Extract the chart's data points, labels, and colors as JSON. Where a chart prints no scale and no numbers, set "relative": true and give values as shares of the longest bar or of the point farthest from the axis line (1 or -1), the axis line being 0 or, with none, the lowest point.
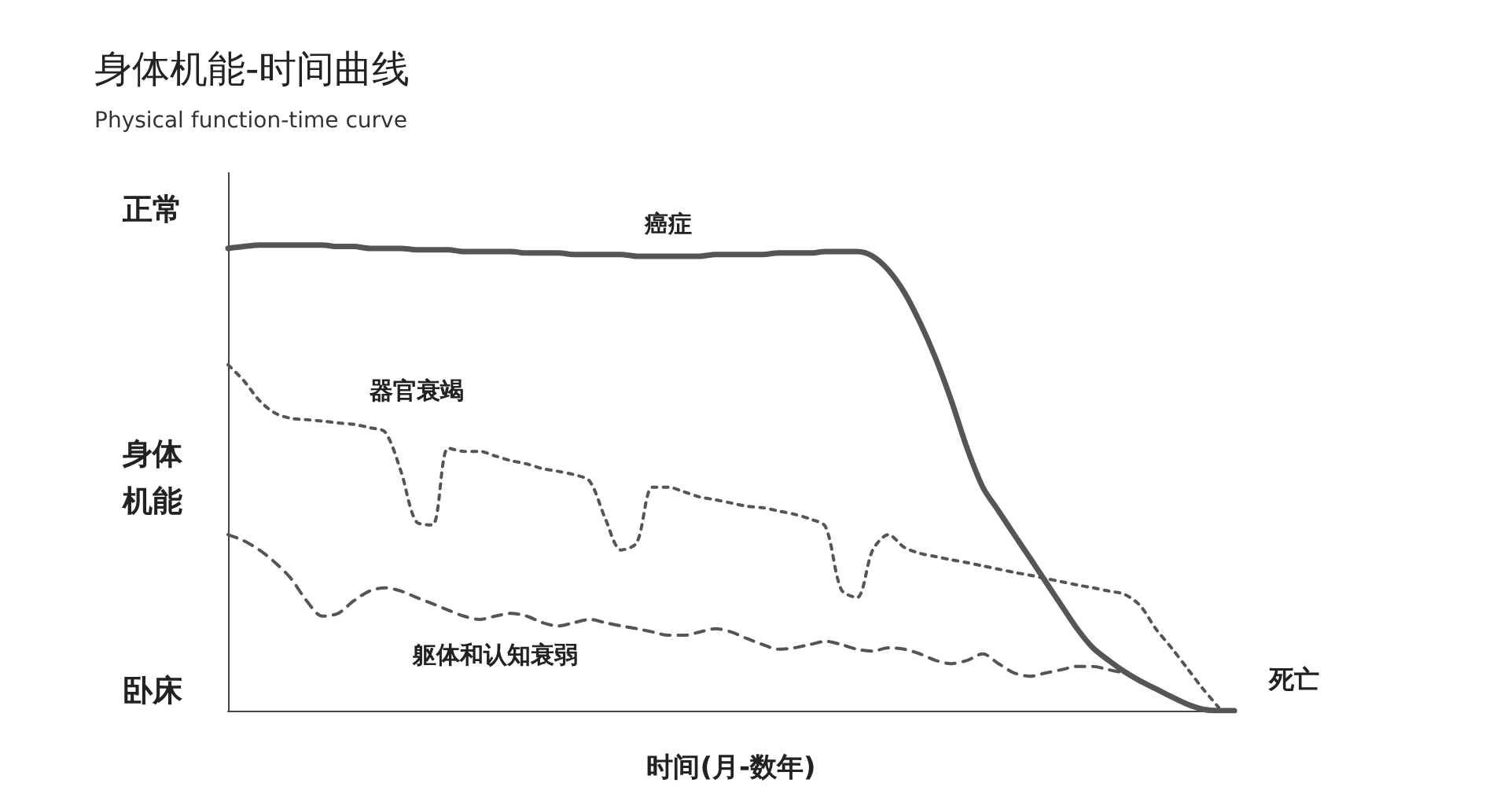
{
  "chart_data": {
    "type": "line",
    "title": "身体机能-时间曲线",
    "subtitle": "Physical function-time curve",
    "xlabel": "时间(月-数年)",
    "ylabel": "身体机能",
    "relative": true,
    "grid": false,
    "legend": false,
    "marker": "none",
    "annotations": [
      "正常",
      "卧床",
      "死亡"
    ],
    "categories": [
      null,
      null,
      null,
      null,
      null,
      null,
      null,
      null,
      null,
      null,
      null,
      null,
      null,
      null,
      null,
      null,
      null,
      null,
      null,
      null,
      null,
      null,
      null,
      null,
      null,
      null,
      null,
      null,
      null,
      null,
      null,
      null,
      null,
      null,
      null,
      null,
      null,
      null,
      null,
      null,
      null,
      null,
      null,
      null,
      null,
      null,
      null,
      null,
      null,
      null,
      null,
      null,
      null,
      null,
      null,
      null,
      null,
      null,
      null,
      null,
      null,
      null,
      null,
      null,
      null
    ],
    "series": [
      {
        "name": "癌症",
        "color": "#555555",
        "line_style": "solid",
        "values": [
          0.993,
          0.997,
          1,
          1,
          1,
          1,
          1,
          0.997,
          0.997,
          0.993,
          0.993,
          0.993,
          0.99,
          0.99,
          0.99,
          0.986,
          0.986,
          0.986,
          0.986,
          0.983,
          0.983,
          0.983,
          0.98,
          0.98,
          0.98,
          0.98,
          0.976,
          0.976,
          0.976,
          0.976,
          0.976,
          0.98,
          0.98,
          0.98,
          0.98,
          0.983,
          0.983,
          0.983,
          0.986,
          0.986,
          0.986,
          0.976,
          0.946,
          0.899,
          0.834,
          0.757,
          0.666,
          0.564,
          0.48,
          0.429,
          0.378,
          0.328,
          0.277,
          0.226,
          0.176,
          0.135,
          0.108,
          0.084,
          0.064,
          0.047,
          0.03,
          0.014,
          0.003,
          0,
          0
        ]
      },
      {
        "name": "器官衰竭",
        "color": "#555555",
        "line_style": "dotted",
        "values": [
          0.743,
          0.709,
          0.666,
          0.639,
          0.628,
          0.625,
          0.622,
          0.618,
          0.615,
          0.608,
          0.598,
          0.514,
          0.405,
          0.399,
          0.564,
          0.557,
          0.557,
          0.547,
          0.537,
          0.53,
          0.52,
          0.514,
          0.507,
          0.493,
          0.412,
          0.345,
          0.361,
          0.48,
          0.48,
          0.47,
          0.459,
          0.453,
          0.446,
          0.439,
          0.436,
          0.429,
          0.422,
          0.412,
          0.395,
          0.26,
          0.243,
          0.345,
          0.378,
          0.351,
          0.338,
          0.331,
          0.324,
          0.318,
          0.311,
          0.304,
          0.297,
          0.291,
          0.284,
          0.277,
          0.27,
          0.264,
          0.257,
          0.25,
          0.226,
          0.176,
          0.135,
          0.091,
          0.047,
          0.007,
          null
        ]
      },
      {
        "name": "躯体和认知衰弱",
        "color": "#555555",
        "line_style": "dashed",
        "values": [
          0.378,
          0.365,
          0.345,
          0.318,
          0.284,
          0.236,
          0.203,
          0.209,
          0.236,
          0.257,
          0.264,
          0.257,
          0.243,
          0.23,
          0.216,
          0.203,
          0.196,
          0.203,
          0.209,
          0.203,
          0.189,
          0.182,
          0.189,
          0.196,
          0.189,
          0.182,
          0.176,
          0.169,
          0.162,
          0.162,
          0.169,
          0.176,
          0.169,
          0.155,
          0.142,
          0.132,
          0.135,
          0.142,
          0.149,
          0.142,
          0.132,
          0.128,
          0.135,
          0.132,
          0.122,
          0.108,
          0.101,
          0.108,
          0.122,
          0.101,
          0.081,
          0.074,
          0.081,
          0.088,
          0.095,
          0.095,
          0.088,
          0.081,
          null,
          null,
          null,
          null,
          null,
          null,
          null
        ]
      }
    ]
  }
}
